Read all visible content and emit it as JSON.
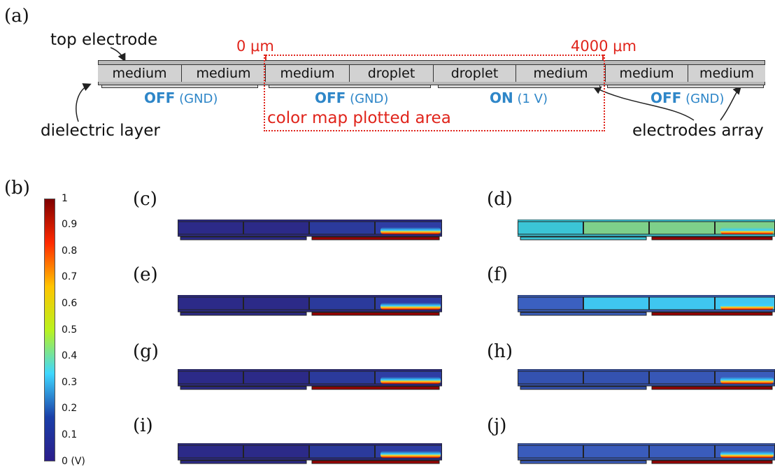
{
  "panel_labels": {
    "a": "(a)",
    "b": "(b)",
    "c": "(c)",
    "d": "(d)",
    "e": "(e)",
    "f": "(f)",
    "g": "(g)",
    "h": "(h)",
    "i": "(i)",
    "j": "(j)"
  },
  "schematic": {
    "top_electrode": "top electrode",
    "dielectric_layer": "dielectric layer",
    "electrodes_array": "electrodes array",
    "cells": [
      "medium",
      "medium",
      "medium",
      "droplet",
      "droplet",
      "medium",
      "medium",
      "medium"
    ],
    "electrodes": [
      {
        "state": "OFF",
        "note": "(GND)"
      },
      {
        "state": "OFF",
        "note": "(GND)"
      },
      {
        "state": "ON",
        "note": "(1 V)"
      },
      {
        "state": "OFF",
        "note": "(GND)"
      }
    ],
    "range_start": "0 μm",
    "range_end": "4000 μm",
    "plotted_area": "color map plotted area"
  },
  "colorbar": {
    "ticks": [
      "1",
      "0.9",
      "0.8",
      "0.7",
      "0.6",
      "0.5",
      "0.4",
      "0.3",
      "0.2",
      "0.1",
      "0 (V)"
    ],
    "colors": [
      "#7f0000",
      "#ff2a00",
      "#ffc400",
      "#b9f21e",
      "#3fd7ff",
      "#1a3fa8",
      "#2b1d8a"
    ]
  }
}
